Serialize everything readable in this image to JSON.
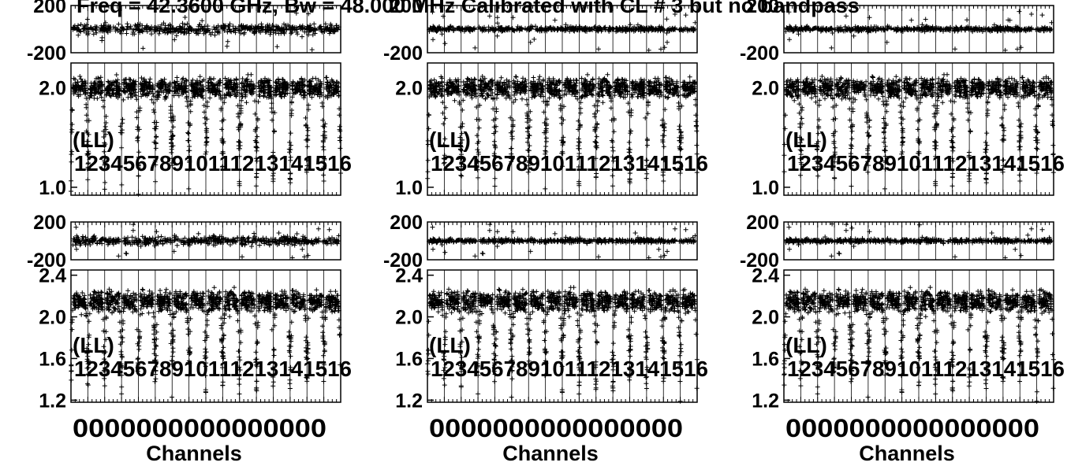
{
  "title": "Freq = 42.3600 GHz, Bw = 48.000 MHz  Calibrated with CL # 3 but no bandpass",
  "chart_data": [
    {
      "panel": "row1-col1",
      "type": "scatter",
      "phase_axis": {
        "ticks": [
          "200",
          "-200"
        ],
        "range": [
          -200,
          200
        ]
      },
      "amp_axis": {
        "ticks": [
          "2.0",
          "1.0"
        ],
        "range": [
          0.92,
          2.25
        ]
      },
      "stokes": "(LL)",
      "if_labels": "12345678910111213141516",
      "x_ticks": "0000000000000000",
      "xlabel": "",
      "amp_level": 2.0
    },
    {
      "panel": "row1-col2",
      "type": "scatter",
      "phase_axis": {
        "ticks": [
          "200",
          "-200"
        ],
        "range": [
          -200,
          200
        ]
      },
      "amp_axis": {
        "ticks": [
          "2.0",
          "1.0"
        ],
        "range": [
          0.92,
          2.25
        ]
      },
      "stokes": "(LL)",
      "if_labels": "12345678910111213141516",
      "x_ticks": "0000000000000000",
      "xlabel": "",
      "amp_level": 2.0
    },
    {
      "panel": "row1-col3",
      "type": "scatter",
      "phase_axis": {
        "ticks": [
          "200",
          "-200"
        ],
        "range": [
          -200,
          200
        ]
      },
      "amp_axis": {
        "ticks": [
          "2.0",
          "1.0"
        ],
        "range": [
          0.92,
          2.25
        ]
      },
      "stokes": "(LL)",
      "if_labels": "12345678910111213141516",
      "x_ticks": "0000000000000000",
      "xlabel": "",
      "amp_level": 2.0
    },
    {
      "panel": "row2-col1",
      "type": "scatter",
      "phase_axis": {
        "ticks": [
          "200",
          "-200"
        ],
        "range": [
          -200,
          200
        ]
      },
      "amp_axis": {
        "ticks": [
          "2.4",
          "2.0",
          "1.6",
          "1.2"
        ],
        "range": [
          1.18,
          2.45
        ]
      },
      "stokes": "(LL)",
      "if_labels": "12345678910111213141516",
      "x_ticks": "0000000000000000",
      "xlabel": "Channels",
      "amp_level": 2.15
    },
    {
      "panel": "row2-col2",
      "type": "scatter",
      "phase_axis": {
        "ticks": [
          "200",
          "-200"
        ],
        "range": [
          -200,
          200
        ]
      },
      "amp_axis": {
        "ticks": [
          "2.4",
          "2.0",
          "1.6",
          "1.2"
        ],
        "range": [
          1.18,
          2.45
        ]
      },
      "stokes": "(LL)",
      "if_labels": "12345678910111213141516",
      "x_ticks": "0000000000000000",
      "xlabel": "Channels",
      "amp_level": 2.15
    },
    {
      "panel": "row2-col3",
      "type": "scatter",
      "phase_axis": {
        "ticks": [
          "200",
          "-200"
        ],
        "range": [
          -200,
          200
        ]
      },
      "amp_axis": {
        "ticks": [
          "2.4",
          "2.0",
          "1.6",
          "1.2"
        ],
        "range": [
          1.18,
          2.45
        ]
      },
      "stokes": "(LL)",
      "if_labels": "12345678910111213141516",
      "x_ticks": "0000000000000000",
      "xlabel": "Channels",
      "amp_level": 2.15
    }
  ]
}
